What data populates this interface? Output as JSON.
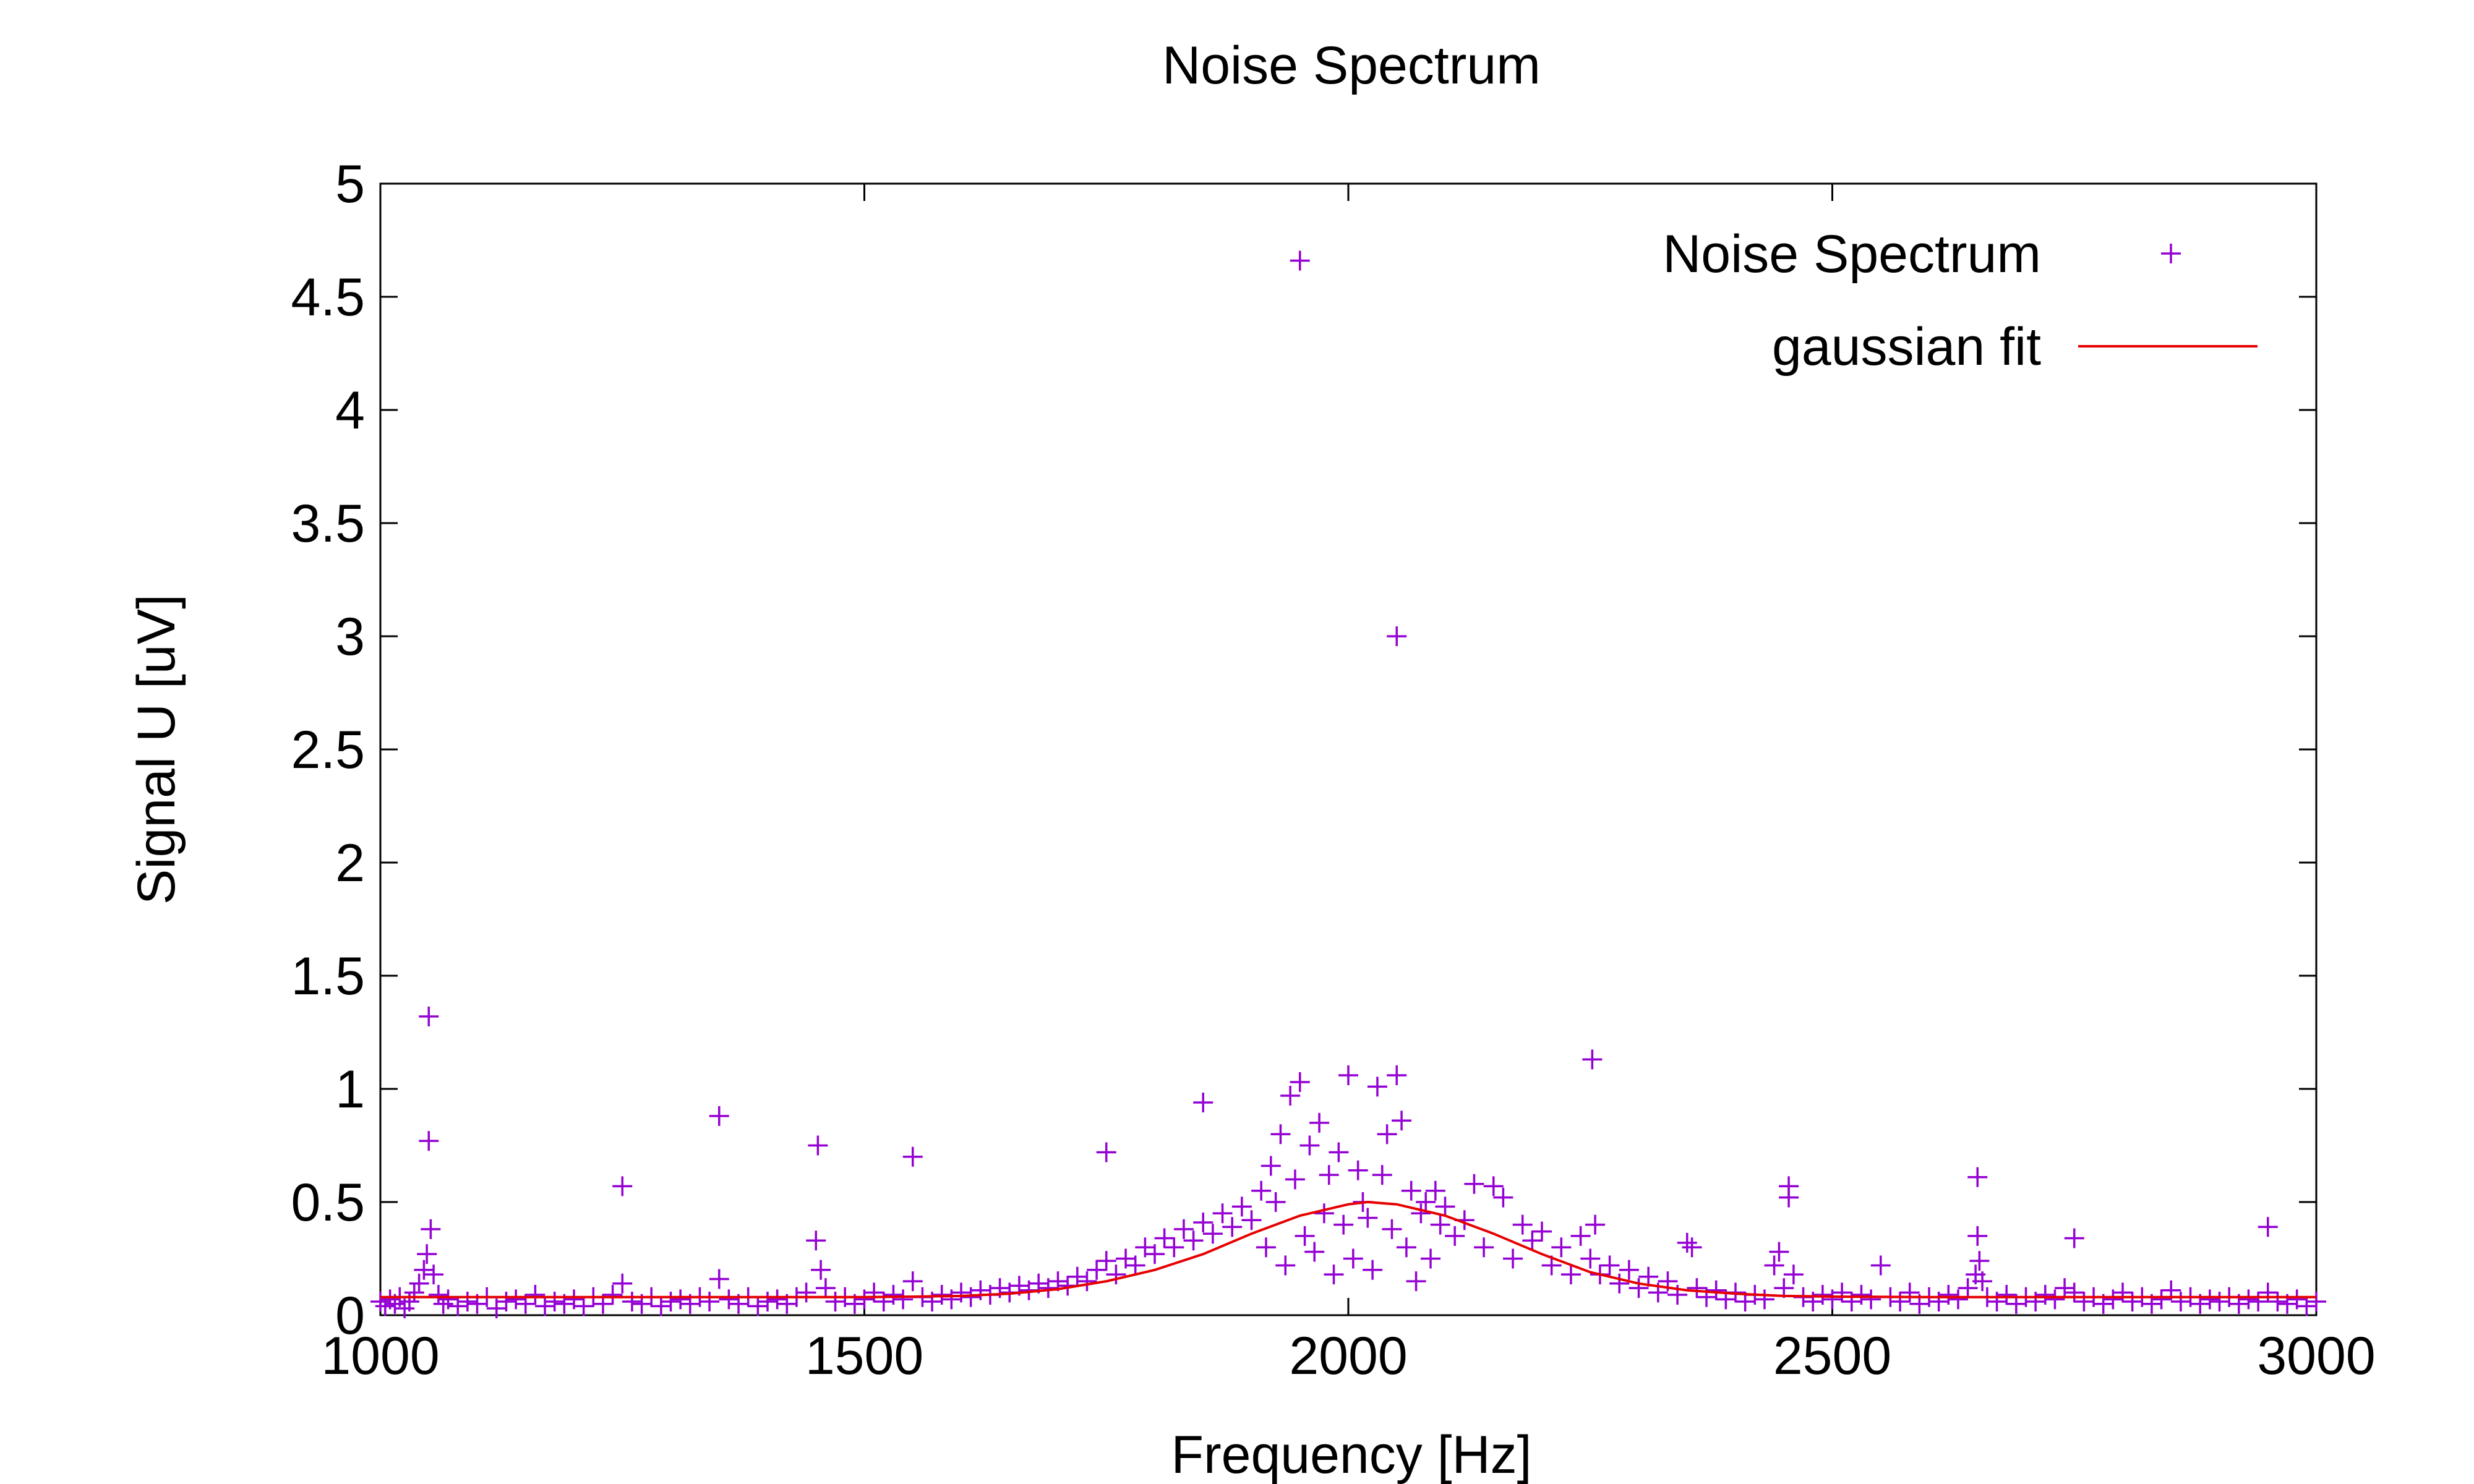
{
  "chart_data": {
    "type": "scatter",
    "title": "Noise Spectrum",
    "xlabel": "Frequency [Hz]",
    "ylabel": "Signal U [uV]",
    "xlim": [
      1000,
      3000
    ],
    "ylim": [
      0,
      5
    ],
    "xticks": [
      1000,
      1500,
      2000,
      2500,
      3000
    ],
    "yticks": [
      0,
      0.5,
      1,
      1.5,
      2,
      2.5,
      3,
      3.5,
      4,
      4.5,
      5
    ],
    "ytick_labels": [
      "0",
      "0.5",
      "1",
      "1.5",
      "2",
      "2.5",
      "3",
      "3.5",
      "4",
      "4.5",
      "5"
    ],
    "grid": false,
    "legend_position": "top-right",
    "legend": [
      {
        "label": "Noise Spectrum",
        "marker": "plus",
        "color": "#9400d3"
      },
      {
        "label": "gaussian fit",
        "marker": "line",
        "color": "#e60000"
      }
    ],
    "series": [
      {
        "name": "Noise Spectrum",
        "kind": "scatter",
        "color": "#9400d3",
        "marker": "plus",
        "points": [
          [
            1000,
            0.06
          ],
          [
            1005,
            0.04
          ],
          [
            1010,
            0.07
          ],
          [
            1015,
            0.05
          ],
          [
            1020,
            0.08
          ],
          [
            1025,
            0.03
          ],
          [
            1030,
            0.06
          ],
          [
            1035,
            0.1
          ],
          [
            1040,
            0.14
          ],
          [
            1045,
            0.2
          ],
          [
            1048,
            0.27
          ],
          [
            1050,
            1.32
          ],
          [
            1050,
            0.77
          ],
          [
            1052,
            0.38
          ],
          [
            1055,
            0.18
          ],
          [
            1060,
            0.09
          ],
          [
            1065,
            0.05
          ],
          [
            1070,
            0.07
          ],
          [
            1080,
            0.04
          ],
          [
            1090,
            0.06
          ],
          [
            1100,
            0.05
          ],
          [
            1110,
            0.08
          ],
          [
            1120,
            0.03
          ],
          [
            1130,
            0.06
          ],
          [
            1140,
            0.07
          ],
          [
            1150,
            0.05
          ],
          [
            1160,
            0.09
          ],
          [
            1170,
            0.04
          ],
          [
            1180,
            0.06
          ],
          [
            1190,
            0.05
          ],
          [
            1200,
            0.07
          ],
          [
            1210,
            0.04
          ],
          [
            1220,
            0.08
          ],
          [
            1230,
            0.05
          ],
          [
            1240,
            0.09
          ],
          [
            1250,
            0.57
          ],
          [
            1250,
            0.14
          ],
          [
            1260,
            0.06
          ],
          [
            1270,
            0.05
          ],
          [
            1280,
            0.08
          ],
          [
            1290,
            0.04
          ],
          [
            1300,
            0.06
          ],
          [
            1310,
            0.07
          ],
          [
            1320,
            0.05
          ],
          [
            1330,
            0.08
          ],
          [
            1340,
            0.06
          ],
          [
            1350,
            0.88
          ],
          [
            1350,
            0.16
          ],
          [
            1360,
            0.07
          ],
          [
            1370,
            0.05
          ],
          [
            1380,
            0.08
          ],
          [
            1390,
            0.04
          ],
          [
            1400,
            0.06
          ],
          [
            1410,
            0.07
          ],
          [
            1420,
            0.05
          ],
          [
            1430,
            0.08
          ],
          [
            1440,
            0.1
          ],
          [
            1450,
            0.33
          ],
          [
            1452,
            0.75
          ],
          [
            1455,
            0.2
          ],
          [
            1460,
            0.12
          ],
          [
            1470,
            0.06
          ],
          [
            1480,
            0.08
          ],
          [
            1490,
            0.05
          ],
          [
            1500,
            0.07
          ],
          [
            1510,
            0.1
          ],
          [
            1520,
            0.06
          ],
          [
            1530,
            0.09
          ],
          [
            1540,
            0.07
          ],
          [
            1550,
            0.7
          ],
          [
            1550,
            0.15
          ],
          [
            1560,
            0.08
          ],
          [
            1570,
            0.06
          ],
          [
            1580,
            0.09
          ],
          [
            1590,
            0.07
          ],
          [
            1600,
            0.1
          ],
          [
            1610,
            0.08
          ],
          [
            1620,
            0.11
          ],
          [
            1630,
            0.09
          ],
          [
            1640,
            0.12
          ],
          [
            1650,
            0.1
          ],
          [
            1660,
            0.13
          ],
          [
            1670,
            0.11
          ],
          [
            1680,
            0.14
          ],
          [
            1690,
            0.12
          ],
          [
            1700,
            0.15
          ],
          [
            1710,
            0.13
          ],
          [
            1720,
            0.17
          ],
          [
            1730,
            0.15
          ],
          [
            1740,
            0.2
          ],
          [
            1750,
            0.72
          ],
          [
            1750,
            0.24
          ],
          [
            1760,
            0.18
          ],
          [
            1770,
            0.25
          ],
          [
            1780,
            0.22
          ],
          [
            1790,
            0.3
          ],
          [
            1800,
            0.27
          ],
          [
            1810,
            0.34
          ],
          [
            1820,
            0.3
          ],
          [
            1830,
            0.38
          ],
          [
            1840,
            0.33
          ],
          [
            1850,
            0.94
          ],
          [
            1850,
            0.41
          ],
          [
            1860,
            0.36
          ],
          [
            1870,
            0.45
          ],
          [
            1880,
            0.39
          ],
          [
            1890,
            0.48
          ],
          [
            1900,
            0.42
          ],
          [
            1910,
            0.55
          ],
          [
            1915,
            0.3
          ],
          [
            1920,
            0.66
          ],
          [
            1925,
            0.5
          ],
          [
            1930,
            0.8
          ],
          [
            1935,
            0.22
          ],
          [
            1940,
            0.97
          ],
          [
            1945,
            0.6
          ],
          [
            1950,
            4.66
          ],
          [
            1950,
            1.03
          ],
          [
            1955,
            0.35
          ],
          [
            1960,
            0.75
          ],
          [
            1965,
            0.28
          ],
          [
            1970,
            0.85
          ],
          [
            1975,
            0.45
          ],
          [
            1980,
            0.62
          ],
          [
            1985,
            0.18
          ],
          [
            1990,
            0.72
          ],
          [
            1995,
            0.4
          ],
          [
            2000,
            1.06
          ],
          [
            2005,
            0.25
          ],
          [
            2010,
            0.64
          ],
          [
            2015,
            0.5
          ],
          [
            2020,
            0.43
          ],
          [
            2025,
            0.2
          ],
          [
            2030,
            1.01
          ],
          [
            2035,
            0.62
          ],
          [
            2040,
            0.8
          ],
          [
            2045,
            0.38
          ],
          [
            2050,
            3.0
          ],
          [
            2050,
            1.06
          ],
          [
            2055,
            0.86
          ],
          [
            2060,
            0.3
          ],
          [
            2065,
            0.55
          ],
          [
            2070,
            0.15
          ],
          [
            2075,
            0.45
          ],
          [
            2080,
            0.5
          ],
          [
            2085,
            0.25
          ],
          [
            2090,
            0.55
          ],
          [
            2095,
            0.4
          ],
          [
            2100,
            0.48
          ],
          [
            2110,
            0.35
          ],
          [
            2120,
            0.42
          ],
          [
            2130,
            0.58
          ],
          [
            2140,
            0.3
          ],
          [
            2150,
            0.57
          ],
          [
            2160,
            0.52
          ],
          [
            2170,
            0.25
          ],
          [
            2180,
            0.4
          ],
          [
            2190,
            0.33
          ],
          [
            2200,
            0.37
          ],
          [
            2210,
            0.22
          ],
          [
            2220,
            0.3
          ],
          [
            2230,
            0.18
          ],
          [
            2240,
            0.35
          ],
          [
            2250,
            0.25
          ],
          [
            2252,
            1.13
          ],
          [
            2255,
            0.4
          ],
          [
            2260,
            0.18
          ],
          [
            2270,
            0.22
          ],
          [
            2280,
            0.14
          ],
          [
            2290,
            0.2
          ],
          [
            2300,
            0.12
          ],
          [
            2310,
            0.17
          ],
          [
            2320,
            0.1
          ],
          [
            2330,
            0.15
          ],
          [
            2340,
            0.09
          ],
          [
            2350,
            0.32
          ],
          [
            2355,
            0.3
          ],
          [
            2360,
            0.12
          ],
          [
            2370,
            0.08
          ],
          [
            2380,
            0.11
          ],
          [
            2390,
            0.07
          ],
          [
            2400,
            0.1
          ],
          [
            2410,
            0.06
          ],
          [
            2420,
            0.09
          ],
          [
            2430,
            0.07
          ],
          [
            2440,
            0.22
          ],
          [
            2445,
            0.28
          ],
          [
            2450,
            0.12
          ],
          [
            2455,
            0.57
          ],
          [
            2455,
            0.52
          ],
          [
            2460,
            0.18
          ],
          [
            2470,
            0.08
          ],
          [
            2480,
            0.06
          ],
          [
            2490,
            0.09
          ],
          [
            2500,
            0.07
          ],
          [
            2510,
            0.1
          ],
          [
            2520,
            0.06
          ],
          [
            2530,
            0.09
          ],
          [
            2540,
            0.07
          ],
          [
            2550,
            0.22
          ],
          [
            2560,
            0.08
          ],
          [
            2570,
            0.06
          ],
          [
            2580,
            0.1
          ],
          [
            2590,
            0.05
          ],
          [
            2600,
            0.08
          ],
          [
            2610,
            0.06
          ],
          [
            2620,
            0.09
          ],
          [
            2630,
            0.07
          ],
          [
            2640,
            0.12
          ],
          [
            2648,
            0.18
          ],
          [
            2650,
            0.61
          ],
          [
            2650,
            0.35
          ],
          [
            2652,
            0.24
          ],
          [
            2655,
            0.15
          ],
          [
            2660,
            0.08
          ],
          [
            2670,
            0.06
          ],
          [
            2680,
            0.09
          ],
          [
            2690,
            0.05
          ],
          [
            2700,
            0.08
          ],
          [
            2710,
            0.06
          ],
          [
            2720,
            0.09
          ],
          [
            2730,
            0.07
          ],
          [
            2740,
            0.12
          ],
          [
            2750,
            0.34
          ],
          [
            2750,
            0.1
          ],
          [
            2760,
            0.06
          ],
          [
            2770,
            0.08
          ],
          [
            2780,
            0.05
          ],
          [
            2790,
            0.07
          ],
          [
            2800,
            0.1
          ],
          [
            2810,
            0.06
          ],
          [
            2820,
            0.08
          ],
          [
            2830,
            0.05
          ],
          [
            2840,
            0.07
          ],
          [
            2850,
            0.11
          ],
          [
            2860,
            0.06
          ],
          [
            2870,
            0.08
          ],
          [
            2880,
            0.05
          ],
          [
            2890,
            0.07
          ],
          [
            2900,
            0.06
          ],
          [
            2910,
            0.08
          ],
          [
            2920,
            0.05
          ],
          [
            2930,
            0.07
          ],
          [
            2940,
            0.06
          ],
          [
            2950,
            0.39
          ],
          [
            2950,
            0.1
          ],
          [
            2960,
            0.06
          ],
          [
            2970,
            0.05
          ],
          [
            2980,
            0.07
          ],
          [
            2990,
            0.04
          ],
          [
            3000,
            0.06
          ]
        ]
      },
      {
        "name": "gaussian fit",
        "kind": "line",
        "color": "#e60000",
        "points": [
          [
            1000,
            0.08
          ],
          [
            1100,
            0.08
          ],
          [
            1200,
            0.08
          ],
          [
            1300,
            0.08
          ],
          [
            1400,
            0.08
          ],
          [
            1500,
            0.08
          ],
          [
            1550,
            0.082
          ],
          [
            1600,
            0.085
          ],
          [
            1650,
            0.095
          ],
          [
            1700,
            0.115
          ],
          [
            1750,
            0.15
          ],
          [
            1800,
            0.2
          ],
          [
            1850,
            0.27
          ],
          [
            1900,
            0.36
          ],
          [
            1950,
            0.44
          ],
          [
            2000,
            0.49
          ],
          [
            2020,
            0.5
          ],
          [
            2050,
            0.49
          ],
          [
            2100,
            0.44
          ],
          [
            2150,
            0.36
          ],
          [
            2200,
            0.27
          ],
          [
            2250,
            0.19
          ],
          [
            2300,
            0.14
          ],
          [
            2350,
            0.11
          ],
          [
            2400,
            0.095
          ],
          [
            2450,
            0.085
          ],
          [
            2500,
            0.082
          ],
          [
            2600,
            0.08
          ],
          [
            2800,
            0.08
          ],
          [
            3000,
            0.08
          ]
        ]
      }
    ]
  }
}
